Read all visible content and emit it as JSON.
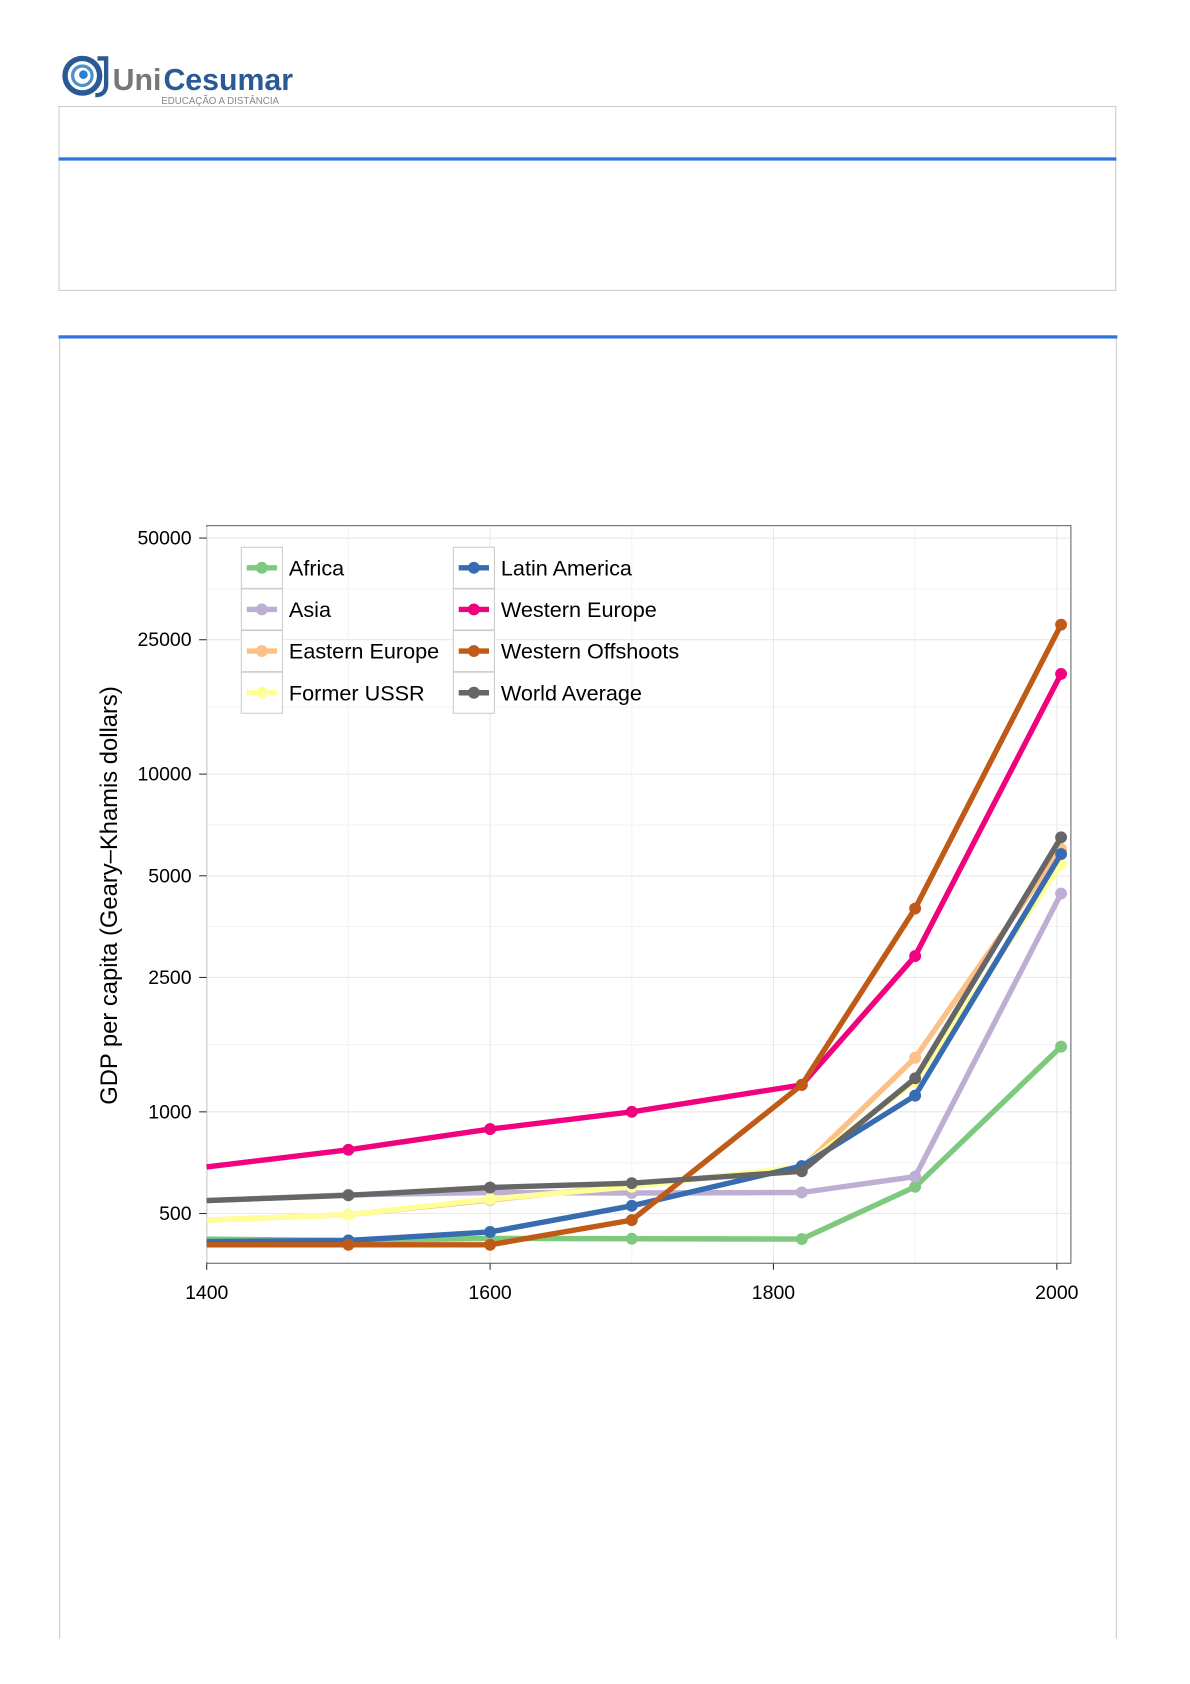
{
  "logo": {
    "name": "UniCesumar",
    "name_part1": "Uni",
    "name_part2": "Cesumar",
    "tagline": "EDUCAÇÃO A DISTÂNCIA"
  },
  "colors": {
    "accent": "#2f73e0",
    "border": "#cccccc"
  },
  "chart_data": {
    "type": "line",
    "title": "",
    "xlabel": "",
    "ylabel": "GDP per capita (Geary–Khamis dollars)",
    "yscale": "log",
    "xlim": [
      1400,
      2005
    ],
    "ylim": [
      360,
      56000
    ],
    "x_ticks": [
      1400,
      1600,
      1800,
      2000
    ],
    "x_tick_labels": [
      "1400",
      "1600",
      "1800",
      "2000"
    ],
    "y_ticks": [
      500,
      1000,
      2500,
      5000,
      10000,
      25000,
      50000
    ],
    "y_tick_labels": [
      "500",
      "1000",
      "2500",
      "5000",
      "10000",
      "25000",
      "50000"
    ],
    "grid": true,
    "legend_placement": "top-left",
    "x": [
      1400,
      1500,
      1600,
      1700,
      1820,
      1900,
      2003
    ],
    "series": [
      {
        "name": "Africa",
        "color": "#7fc97f",
        "values": [
          420,
          416,
          422,
          421,
          420,
          600,
          1560
        ]
      },
      {
        "name": "Asia",
        "color": "#beaed4",
        "values": [
          546,
          568,
          577,
          575,
          577,
          643,
          4430
        ]
      },
      {
        "name": "Eastern Europe",
        "color": "#fdc086",
        "values": [
          478,
          496,
          548,
          606,
          683,
          1446,
          6000
        ]
      },
      {
        "name": "Former USSR",
        "color": "#ffff99",
        "values": [
          478,
          496,
          552,
          600,
          688,
          1230,
          5400
        ]
      },
      {
        "name": "Latin America",
        "color": "#386cb0",
        "values": [
          413,
          416,
          441,
          527,
          691,
          1117,
          5800
        ]
      },
      {
        "name": "Western Europe",
        "color": "#f0027f",
        "values": [
          687,
          772,
          889,
          1000,
          1202,
          2893,
          19800
        ]
      },
      {
        "name": "Western Offshoots",
        "color": "#bf5b17",
        "values": [
          404,
          404,
          404,
          478,
          1202,
          4000,
          27700
        ]
      },
      {
        "name": "World Average",
        "color": "#666666",
        "values": [
          546,
          566,
          597,
          615,
          667,
          1257,
          6500
        ]
      }
    ]
  }
}
